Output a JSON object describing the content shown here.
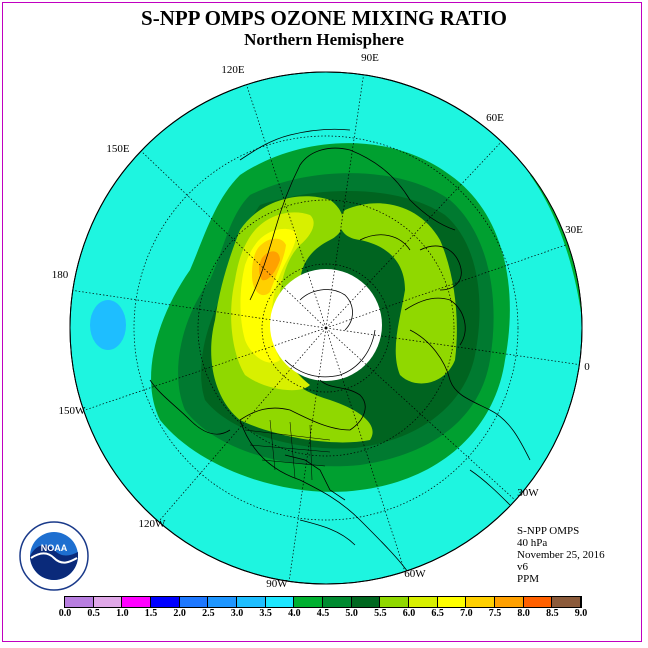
{
  "title": "S-NPP OMPS OZONE MIXING RATIO",
  "subtitle": "Northern Hemisphere",
  "longitude_labels": [
    "120E",
    "90E",
    "60E",
    "150E",
    "30E",
    "180",
    "0",
    "150W",
    "30W",
    "120W",
    "60W",
    "90W"
  ],
  "info": {
    "instrument": "S-NPP OMPS",
    "level": "40 hPa",
    "date": "November 25, 2016",
    "version": "v6",
    "units": "PPM"
  },
  "logo_text": "NOAA",
  "colorbar": {
    "ticks": [
      "0.0",
      "0.5",
      "1.0",
      "1.5",
      "2.0",
      "2.5",
      "3.0",
      "3.5",
      "4.0",
      "4.5",
      "5.0",
      "5.5",
      "6.0",
      "6.5",
      "7.0",
      "7.5",
      "8.0",
      "8.5",
      "9.0"
    ],
    "colors": [
      "#b87ee0",
      "#e0a8e8",
      "#ff00ff",
      "#0000ff",
      "#1e78ff",
      "#1e96ff",
      "#1ebeff",
      "#1ee6ff",
      "#00b030",
      "#008a30",
      "#006820",
      "#90d800",
      "#d8f000",
      "#ffff00",
      "#ffd000",
      "#ffa000",
      "#ff6000",
      "#ff0000",
      "#8b5a3a"
    ]
  },
  "colors": {
    "background_field": "#00ffe0",
    "frame": "#c000c0"
  }
}
